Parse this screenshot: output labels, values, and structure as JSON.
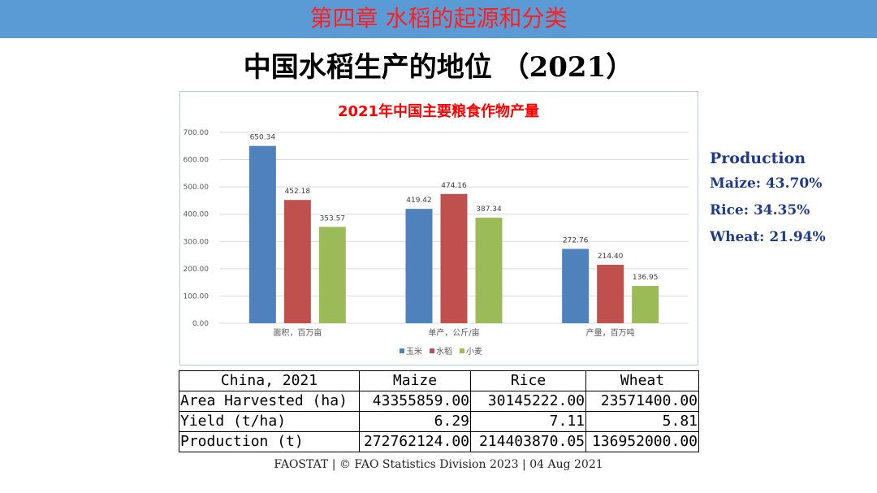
{
  "header": {
    "title": "第四章 水稻的起源和分类",
    "bg_color": "#5b9bd5",
    "title_color": "#ff1f1f"
  },
  "slide": {
    "title": "中国水稻生产的地位 （2021）"
  },
  "chart_data": {
    "type": "bar",
    "title": "2021年中国主要粮食作物产量",
    "categories": [
      "面积，百万亩",
      "单产，公斤/亩",
      "产量，百万吨"
    ],
    "series": [
      {
        "name": "玉米",
        "color": "#4f81bd",
        "values": [
          650.34,
          419.42,
          272.76
        ]
      },
      {
        "name": "水稻",
        "color": "#c0504d",
        "values": [
          452.18,
          474.16,
          214.4
        ]
      },
      {
        "name": "小麦",
        "color": "#9bbb59",
        "values": [
          353.57,
          387.34,
          136.95
        ]
      }
    ],
    "ylim": [
      0,
      700
    ],
    "yticks": [
      "0.00",
      "100.00",
      "200.00",
      "300.00",
      "400.00",
      "500.00",
      "600.00",
      "700.00"
    ],
    "xlabel": "",
    "ylabel": "",
    "grid": true,
    "legend": "bottom-center"
  },
  "side_panel": {
    "heading": "Production",
    "items": [
      "Maize: 43.70%",
      "Rice: 34.35%",
      "Wheat: 21.94%"
    ]
  },
  "table": {
    "header": [
      "China, 2021",
      "Maize",
      "Rice",
      "Wheat"
    ],
    "rows": [
      [
        "Area Harvested (ha)",
        "43355859.00",
        "30145222.00",
        "23571400.00"
      ],
      [
        "Yield (t/ha)",
        "6.29",
        "7.11",
        "5.81"
      ],
      [
        "Production (t)",
        "272762124.00",
        "214403870.05",
        "136952000.00"
      ]
    ]
  },
  "source": "FAOSTAT | © FAO Statistics Division 2023 | 04 Aug 2021"
}
